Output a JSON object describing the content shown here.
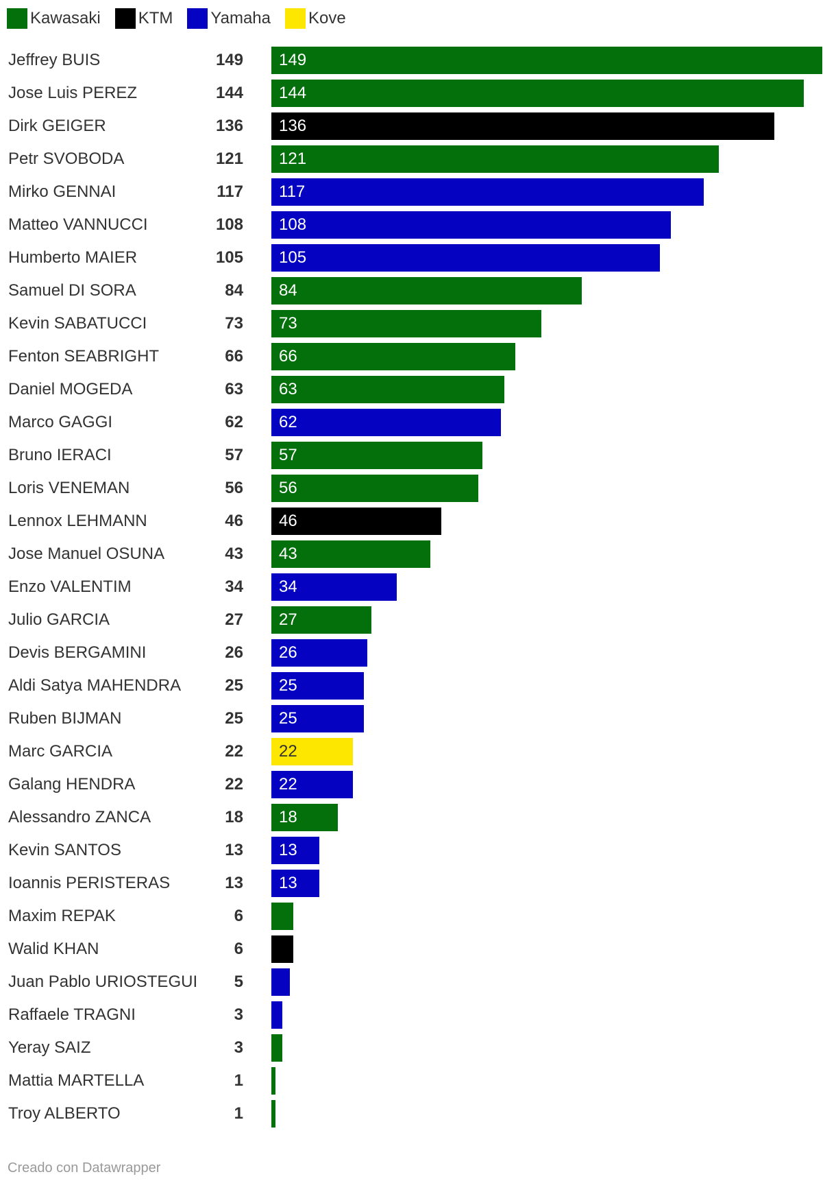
{
  "chart_data": {
    "type": "bar",
    "orientation": "horizontal",
    "title": "",
    "legend": [
      {
        "name": "Kawasaki",
        "color": "#03700b"
      },
      {
        "name": "KTM",
        "color": "#000000"
      },
      {
        "name": "Yamaha",
        "color": "#0502c2"
      },
      {
        "name": "Kove",
        "color": "#fde600"
      }
    ],
    "xlim": [
      0,
      149
    ],
    "rows": [
      {
        "name": "Jeffrey BUIS",
        "value": 149,
        "brand": "Kawasaki"
      },
      {
        "name": "Jose Luis PEREZ",
        "value": 144,
        "brand": "Kawasaki"
      },
      {
        "name": "Dirk GEIGER",
        "value": 136,
        "brand": "KTM"
      },
      {
        "name": "Petr SVOBODA",
        "value": 121,
        "brand": "Kawasaki"
      },
      {
        "name": "Mirko GENNAI",
        "value": 117,
        "brand": "Yamaha"
      },
      {
        "name": "Matteo VANNUCCI",
        "value": 108,
        "brand": "Yamaha"
      },
      {
        "name": "Humberto MAIER",
        "value": 105,
        "brand": "Yamaha"
      },
      {
        "name": "Samuel DI SORA",
        "value": 84,
        "brand": "Kawasaki"
      },
      {
        "name": "Kevin SABATUCCI",
        "value": 73,
        "brand": "Kawasaki"
      },
      {
        "name": "Fenton SEABRIGHT",
        "value": 66,
        "brand": "Kawasaki"
      },
      {
        "name": "Daniel MOGEDA",
        "value": 63,
        "brand": "Kawasaki"
      },
      {
        "name": "Marco GAGGI",
        "value": 62,
        "brand": "Yamaha"
      },
      {
        "name": "Bruno IERACI",
        "value": 57,
        "brand": "Kawasaki"
      },
      {
        "name": "Loris VENEMAN",
        "value": 56,
        "brand": "Kawasaki"
      },
      {
        "name": "Lennox LEHMANN",
        "value": 46,
        "brand": "KTM"
      },
      {
        "name": "Jose Manuel OSUNA",
        "value": 43,
        "brand": "Kawasaki"
      },
      {
        "name": "Enzo VALENTIM",
        "value": 34,
        "brand": "Yamaha"
      },
      {
        "name": "Julio GARCIA",
        "value": 27,
        "brand": "Kawasaki"
      },
      {
        "name": "Devis BERGAMINI",
        "value": 26,
        "brand": "Yamaha"
      },
      {
        "name": "Aldi Satya MAHENDRA",
        "value": 25,
        "brand": "Yamaha"
      },
      {
        "name": "Ruben BIJMAN",
        "value": 25,
        "brand": "Yamaha"
      },
      {
        "name": "Marc GARCIA",
        "value": 22,
        "brand": "Kove"
      },
      {
        "name": "Galang HENDRA",
        "value": 22,
        "brand": "Yamaha"
      },
      {
        "name": "Alessandro ZANCA",
        "value": 18,
        "brand": "Kawasaki"
      },
      {
        "name": "Kevin SANTOS",
        "value": 13,
        "brand": "Yamaha"
      },
      {
        "name": "Ioannis PERISTERAS",
        "value": 13,
        "brand": "Yamaha"
      },
      {
        "name": "Maxim REPAK",
        "value": 6,
        "brand": "Kawasaki"
      },
      {
        "name": "Walid KHAN",
        "value": 6,
        "brand": "KTM"
      },
      {
        "name": "Juan Pablo URIOSTEGUI",
        "value": 5,
        "brand": "Yamaha"
      },
      {
        "name": "Raffaele TRAGNI",
        "value": 3,
        "brand": "Yamaha"
      },
      {
        "name": "Yeray SAIZ",
        "value": 3,
        "brand": "Kawasaki"
      },
      {
        "name": "Mattia MARTELLA",
        "value": 1,
        "brand": "Kawasaki"
      },
      {
        "name": "Troy ALBERTO",
        "value": 1,
        "brand": "Kawasaki"
      }
    ]
  },
  "footer": {
    "credit": "Creado con Datawrapper"
  }
}
